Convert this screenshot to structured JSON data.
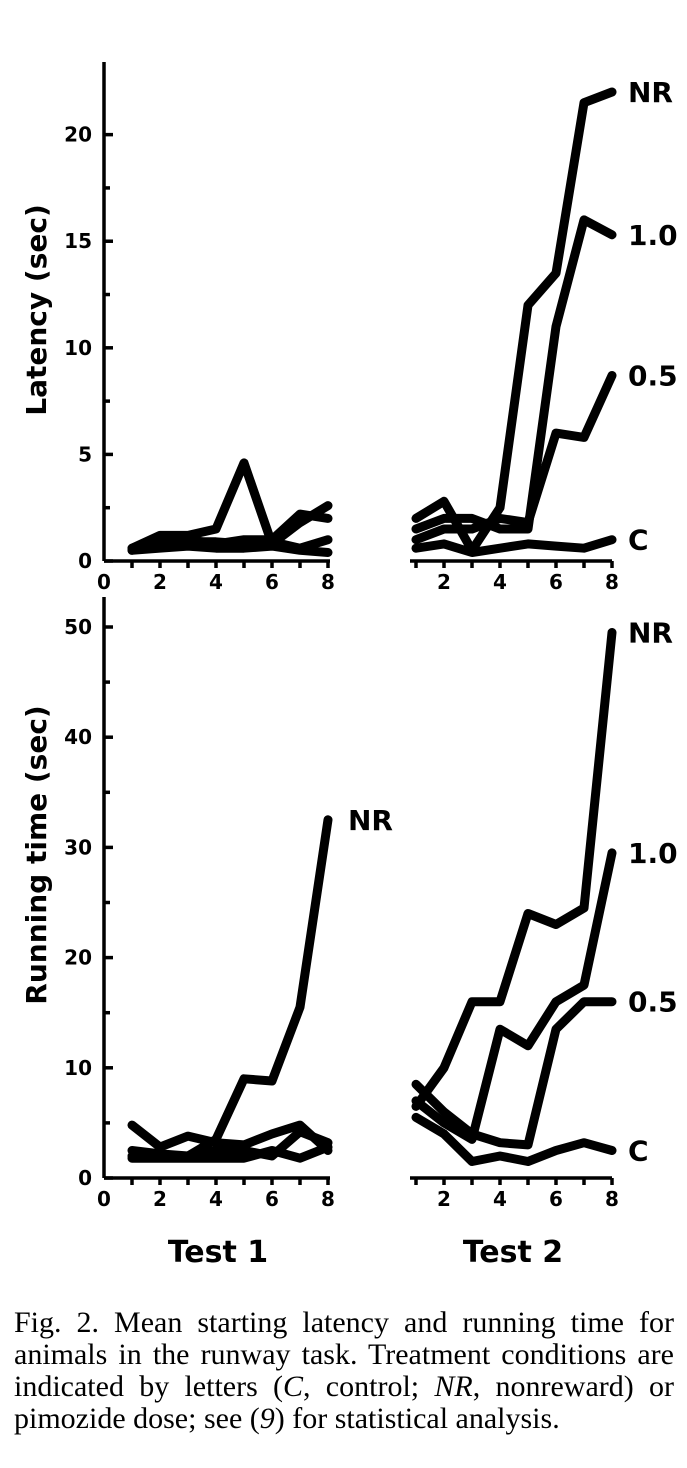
{
  "chart_data": [
    {
      "type": "line",
      "panel": "top-left",
      "ylabel": "Latency (sec)",
      "xlabel": "Test 1",
      "ylim": [
        0,
        22
      ],
      "xlim": [
        0,
        8
      ],
      "yticks": [
        0,
        5,
        10,
        15,
        20
      ],
      "xticks": [
        0,
        2,
        4,
        6,
        8
      ],
      "series": [
        {
          "values": [
            [
              1,
              0.6
            ],
            [
              2,
              1.2
            ],
            [
              3,
              1.2
            ],
            [
              4,
              1.5
            ],
            [
              5,
              4.6
            ],
            [
              6,
              0.8
            ],
            [
              7,
              1.8
            ],
            [
              8,
              2.6
            ]
          ]
        },
        {
          "values": [
            [
              1,
              0.6
            ],
            [
              2,
              1.0
            ],
            [
              3,
              1.0
            ],
            [
              4,
              0.8
            ],
            [
              5,
              1.0
            ],
            [
              6,
              1.0
            ],
            [
              7,
              2.2
            ],
            [
              8,
              2.0
            ]
          ]
        },
        {
          "values": [
            [
              1,
              0.5
            ],
            [
              2,
              0.8
            ],
            [
              3,
              0.9
            ],
            [
              4,
              0.9
            ],
            [
              5,
              0.8
            ],
            [
              6,
              0.9
            ],
            [
              7,
              0.6
            ],
            [
              8,
              1.0
            ]
          ]
        },
        {
          "values": [
            [
              1,
              0.5
            ],
            [
              2,
              0.6
            ],
            [
              3,
              0.7
            ],
            [
              4,
              0.6
            ],
            [
              5,
              0.6
            ],
            [
              6,
              0.7
            ],
            [
              7,
              0.5
            ],
            [
              8,
              0.4
            ]
          ]
        }
      ]
    },
    {
      "type": "line",
      "panel": "top-right",
      "xlabel": "Test 2",
      "ylim": [
        0,
        22
      ],
      "xlim": [
        0,
        8
      ],
      "xticks": [
        2,
        4,
        6,
        8
      ],
      "series": [
        {
          "name": "NR",
          "values": [
            [
              1,
              2.0
            ],
            [
              2,
              2.8
            ],
            [
              3,
              0.5
            ],
            [
              4,
              2.5
            ],
            [
              5,
              12.0
            ],
            [
              6,
              13.5
            ],
            [
              7,
              21.5
            ],
            [
              8,
              22.0
            ]
          ]
        },
        {
          "name": "1.0",
          "values": [
            [
              1,
              1.5
            ],
            [
              2,
              2.0
            ],
            [
              3,
              2.0
            ],
            [
              4,
              1.5
            ],
            [
              5,
              1.5
            ],
            [
              6,
              11.0
            ],
            [
              7,
              16.0
            ],
            [
              8,
              15.3
            ]
          ]
        },
        {
          "name": "0.5",
          "values": [
            [
              1,
              1.0
            ],
            [
              2,
              1.5
            ],
            [
              3,
              1.5
            ],
            [
              4,
              2.0
            ],
            [
              5,
              1.8
            ],
            [
              6,
              6.0
            ],
            [
              7,
              5.8
            ],
            [
              8,
              8.7
            ]
          ]
        },
        {
          "name": "C",
          "values": [
            [
              1,
              0.6
            ],
            [
              2,
              0.8
            ],
            [
              3,
              0.4
            ],
            [
              4,
              0.6
            ],
            [
              5,
              0.8
            ],
            [
              6,
              0.7
            ],
            [
              7,
              0.6
            ],
            [
              8,
              1.0
            ]
          ]
        }
      ]
    },
    {
      "type": "line",
      "panel": "bottom-left",
      "ylabel": "Running time (sec)",
      "xlabel": "Test 1",
      "ylim": [
        0,
        50
      ],
      "xlim": [
        0,
        8
      ],
      "yticks": [
        0,
        10,
        20,
        30,
        40,
        50
      ],
      "xticks": [
        0,
        2,
        4,
        6,
        8
      ],
      "series": [
        {
          "name": "NR",
          "values": [
            [
              1,
              2.0
            ],
            [
              2,
              2.0
            ],
            [
              3,
              2.0
            ],
            [
              4,
              3.5
            ],
            [
              5,
              9.0
            ],
            [
              6,
              8.8
            ],
            [
              7,
              15.5
            ],
            [
              8,
              32.5
            ]
          ]
        },
        {
          "values": [
            [
              1,
              4.8
            ],
            [
              2,
              2.8
            ],
            [
              3,
              3.8
            ],
            [
              4,
              3.2
            ],
            [
              5,
              3.0
            ],
            [
              6,
              4.0
            ],
            [
              7,
              4.8
            ],
            [
              8,
              2.5
            ]
          ]
        },
        {
          "values": [
            [
              1,
              2.5
            ],
            [
              2,
              2.2
            ],
            [
              3,
              2.0
            ],
            [
              4,
              2.5
            ],
            [
              5,
              2.5
            ],
            [
              6,
              2.0
            ],
            [
              7,
              4.2
            ],
            [
              8,
              3.2
            ]
          ]
        },
        {
          "values": [
            [
              1,
              1.8
            ],
            [
              2,
              1.8
            ],
            [
              3,
              1.8
            ],
            [
              4,
              1.8
            ],
            [
              5,
              1.8
            ],
            [
              6,
              2.5
            ],
            [
              7,
              1.8
            ],
            [
              8,
              2.8
            ]
          ]
        }
      ]
    },
    {
      "type": "line",
      "panel": "bottom-right",
      "xlabel": "Test 2",
      "ylim": [
        0,
        50
      ],
      "xlim": [
        0,
        8
      ],
      "xticks": [
        2,
        4,
        6,
        8
      ],
      "series": [
        {
          "name": "NR",
          "values": [
            [
              1,
              6.5
            ],
            [
              2,
              10.0
            ],
            [
              3,
              16.0
            ],
            [
              4,
              16.0
            ],
            [
              5,
              24.0
            ],
            [
              6,
              23.0
            ],
            [
              7,
              24.5
            ],
            [
              8,
              49.5
            ]
          ]
        },
        {
          "name": "1.0",
          "values": [
            [
              1,
              7.0
            ],
            [
              2,
              5.0
            ],
            [
              3,
              3.5
            ],
            [
              4,
              13.5
            ],
            [
              5,
              12.0
            ],
            [
              6,
              16.0
            ],
            [
              7,
              17.5
            ],
            [
              8,
              29.5
            ]
          ]
        },
        {
          "name": "0.5",
          "values": [
            [
              1,
              8.5
            ],
            [
              2,
              6.0
            ],
            [
              3,
              4.0
            ],
            [
              4,
              3.2
            ],
            [
              5,
              3.0
            ],
            [
              6,
              13.5
            ],
            [
              7,
              16.0
            ],
            [
              8,
              16.0
            ]
          ]
        },
        {
          "name": "C",
          "values": [
            [
              1,
              5.5
            ],
            [
              2,
              4.0
            ],
            [
              3,
              1.5
            ],
            [
              4,
              2.0
            ],
            [
              5,
              1.5
            ],
            [
              6,
              2.5
            ],
            [
              7,
              3.2
            ],
            [
              8,
              2.5
            ]
          ]
        }
      ]
    }
  ],
  "axis_labels": {
    "top_ylabel": "Latency (sec)",
    "bottom_ylabel": "Running time (sec)",
    "test1": "Test 1",
    "test2": "Test 2"
  },
  "caption": {
    "label": "Fig. 2.",
    "text_1": " Mean starting latency and running time for animals in the runway task. Treatment conditions are indicated by letters (",
    "c_letter": "C",
    "text_2": ", control; ",
    "nr_letter": "NR",
    "text_3": ", nonreward) or pimozide dose; see (",
    "ref": "9",
    "text_4": ") for statistical analysis."
  }
}
